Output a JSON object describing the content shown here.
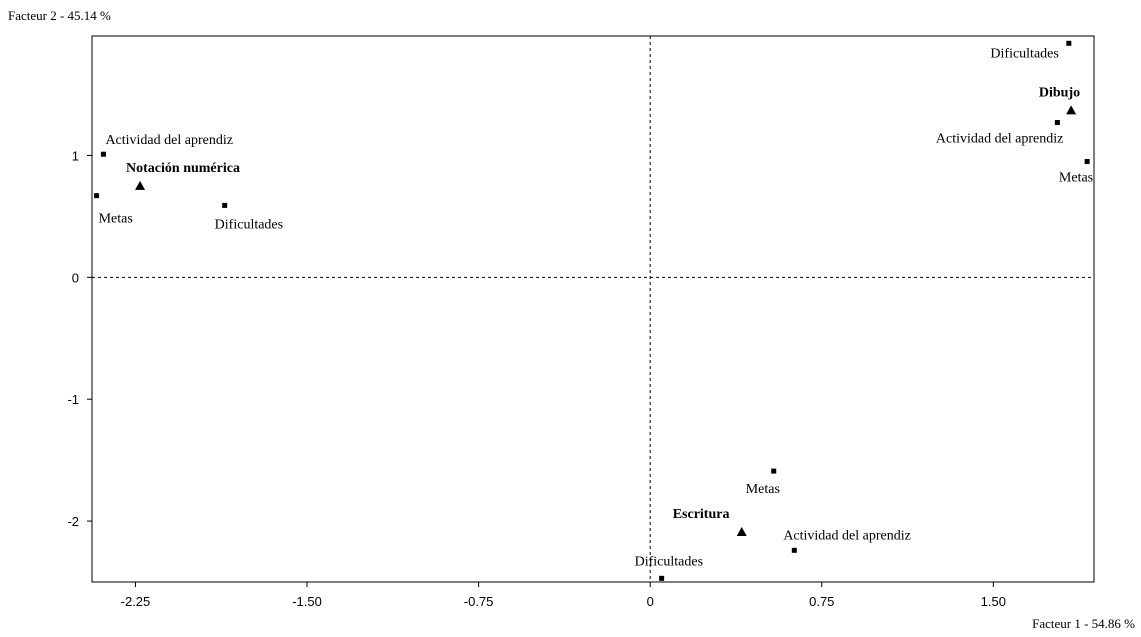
{
  "chart_data": {
    "type": "scatter",
    "x_axis_label": "Facteur 1  -  54.86 %",
    "y_axis_label": "Facteur 2  -  45.14 %",
    "xlim": [
      -2.44,
      1.94
    ],
    "ylim": [
      -2.5,
      1.98
    ],
    "x_ticks": [
      -2.25,
      -1.5,
      -0.75,
      0,
      0.75,
      1.5
    ],
    "x_tick_labels": [
      "-2.25",
      "-1.50",
      "-0.75",
      "0",
      "0.75",
      "1.50"
    ],
    "y_ticks": [
      1,
      0,
      -1,
      -2
    ],
    "y_tick_labels": [
      "1",
      "0",
      "-1",
      "-2"
    ],
    "grid": false,
    "reference_lines": {
      "x": 0,
      "y": 0,
      "style": "dashed"
    },
    "categories": [
      {
        "label": "Dibujo",
        "marker": "triangle",
        "x": 1.84,
        "y": 1.37
      },
      {
        "label": "Notación numérica",
        "marker": "triangle",
        "x": -2.23,
        "y": 0.75
      },
      {
        "label": "Escritura",
        "marker": "triangle",
        "x": 0.4,
        "y": -2.09
      }
    ],
    "points": [
      {
        "label": "Dificultades",
        "marker": "square",
        "x": 1.83,
        "y": 1.92,
        "group": "Dibujo"
      },
      {
        "label": "Actividad del aprendiz",
        "marker": "square",
        "x": 1.78,
        "y": 1.27,
        "group": "Dibujo"
      },
      {
        "label": "Metas",
        "marker": "square",
        "x": 1.91,
        "y": 0.95,
        "group": "Dibujo"
      },
      {
        "label": "Actividad del aprendiz",
        "marker": "square",
        "x": -2.39,
        "y": 1.01,
        "group": "Notación numérica"
      },
      {
        "label": "Metas",
        "marker": "square",
        "x": -2.42,
        "y": 0.67,
        "group": "Notación numérica"
      },
      {
        "label": "Dificultades",
        "marker": "square",
        "x": -1.86,
        "y": 0.59,
        "group": "Notación numérica"
      },
      {
        "label": "Metas",
        "marker": "square",
        "x": 0.54,
        "y": -1.59,
        "group": "Escritura"
      },
      {
        "label": "Actividad del aprendiz",
        "marker": "square",
        "x": 0.63,
        "y": -2.24,
        "group": "Escritura"
      },
      {
        "label": "Dificultades",
        "marker": "square",
        "x": 0.05,
        "y": -2.47,
        "group": "Escritura"
      }
    ]
  }
}
